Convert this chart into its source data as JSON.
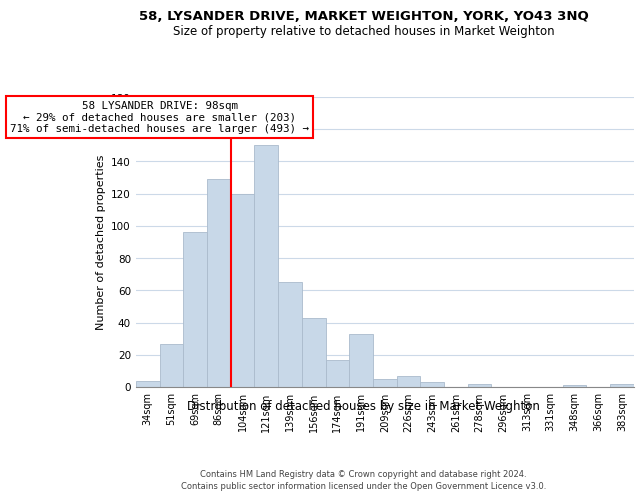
{
  "title": "58, LYSANDER DRIVE, MARKET WEIGHTON, YORK, YO43 3NQ",
  "subtitle": "Size of property relative to detached houses in Market Weighton",
  "xlabel": "Distribution of detached houses by size in Market Weighton",
  "ylabel": "Number of detached properties",
  "bar_labels": [
    "34sqm",
    "51sqm",
    "69sqm",
    "86sqm",
    "104sqm",
    "121sqm",
    "139sqm",
    "156sqm",
    "174sqm",
    "191sqm",
    "209sqm",
    "226sqm",
    "243sqm",
    "261sqm",
    "278sqm",
    "296sqm",
    "313sqm",
    "331sqm",
    "348sqm",
    "366sqm",
    "383sqm"
  ],
  "bar_values": [
    4,
    27,
    96,
    129,
    120,
    150,
    65,
    43,
    17,
    33,
    5,
    7,
    3,
    0,
    2,
    0,
    0,
    0,
    1,
    0,
    2
  ],
  "bar_color": "#c8d8e8",
  "bar_edge_color": "#aabbcc",
  "ylim": [
    0,
    180
  ],
  "yticks": [
    0,
    20,
    40,
    60,
    80,
    100,
    120,
    140,
    160,
    180
  ],
  "vline_color": "red",
  "annotation_title": "58 LYSANDER DRIVE: 98sqm",
  "annotation_line1": "← 29% of detached houses are smaller (203)",
  "annotation_line2": "71% of semi-detached houses are larger (493) →",
  "annotation_box_color": "white",
  "annotation_box_edge": "red",
  "footer1": "Contains HM Land Registry data © Crown copyright and database right 2024.",
  "footer2": "Contains public sector information licensed under the Open Government Licence v3.0.",
  "background_color": "white",
  "grid_color": "#ccd9e8"
}
